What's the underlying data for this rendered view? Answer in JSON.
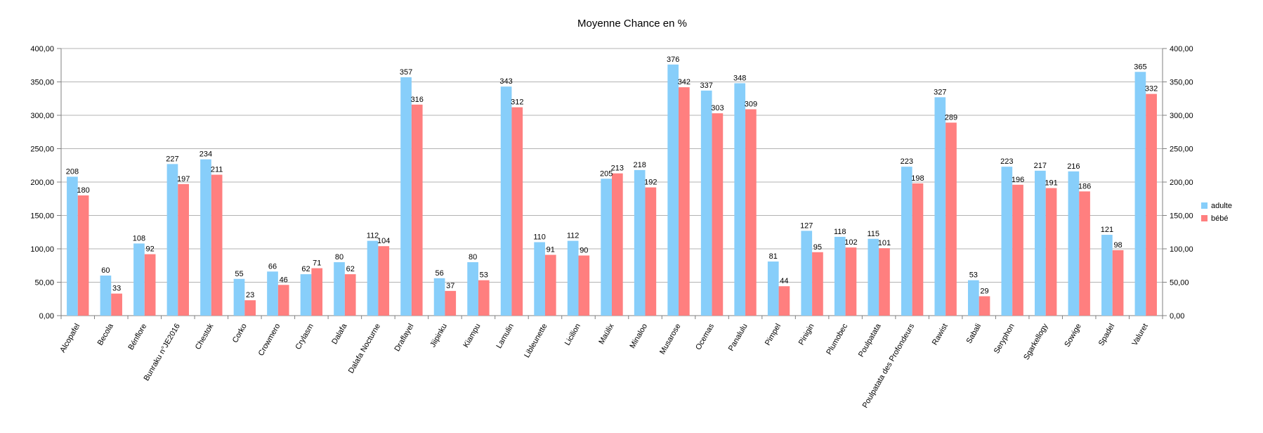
{
  "chart_data": {
    "type": "bar",
    "title": "Moyenne Chance en %",
    "xlabel": "",
    "ylabel": "",
    "ylim": [
      0,
      400
    ],
    "yticks": [
      "0,00",
      "50,00",
      "100,00",
      "150,00",
      "200,00",
      "250,00",
      "300,00",
      "350,00",
      "400,00"
    ],
    "grid": true,
    "legend_position": "right",
    "categories": [
      "Alcopafel",
      "Becola",
      "Bénflore",
      "Bunraku n°JE2016",
      "Chestok",
      "Corko",
      "Crowmero",
      "Crylasm",
      "Dalafa",
      "Dalafa Nocturne",
      "Draflayel",
      "Jiipinku",
      "Kiampu",
      "Lamulin",
      "Libleunette",
      "Licilion",
      "Maülix",
      "Minaloo",
      "Musarose",
      "Ocemas",
      "Panalulu",
      "Pimpel",
      "Pinigin",
      "Plumobec",
      "Poulpatata",
      "Poulpatata des Profondeurs",
      "Rawist",
      "Sabali",
      "Seryphon",
      "Sgarkellogy",
      "Sowige",
      "Spadel",
      "Valuret"
    ],
    "series": [
      {
        "name": "adulte",
        "color": "#87CEFA",
        "values": [
          208,
          60,
          108,
          227,
          234,
          55,
          66,
          62,
          80,
          112,
          357,
          56,
          80,
          343,
          110,
          112,
          205,
          218,
          376,
          337,
          348,
          81,
          127,
          118,
          115,
          223,
          327,
          53,
          223,
          217,
          216,
          121,
          365
        ]
      },
      {
        "name": "bébé",
        "color": "#FF7F7F",
        "values": [
          180,
          33,
          92,
          197,
          211,
          23,
          46,
          71,
          62,
          104,
          316,
          37,
          53,
          312,
          91,
          90,
          213,
          192,
          342,
          303,
          309,
          44,
          95,
          102,
          101,
          198,
          289,
          29,
          196,
          191,
          186,
          98,
          332
        ]
      }
    ]
  }
}
